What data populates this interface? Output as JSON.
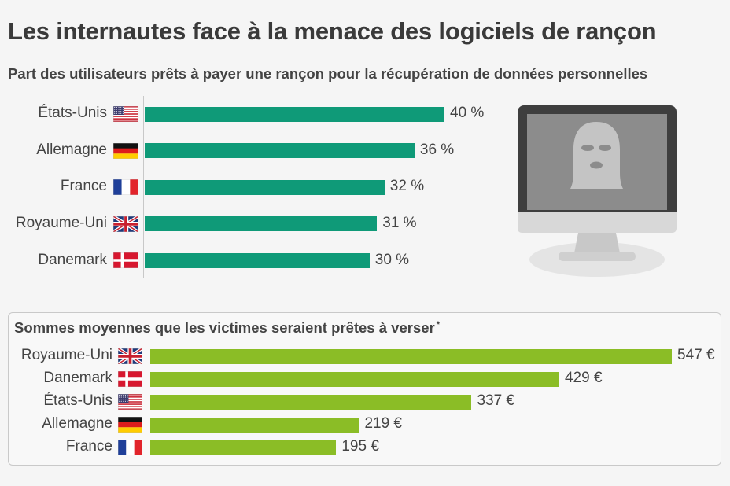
{
  "title": "Les internautes face à la menace des logiciels de rançon",
  "chart_data": [
    {
      "type": "bar",
      "orientation": "horizontal",
      "title": "Part des utilisateurs prêts à payer une rançon pour la récupération de données personnelles",
      "categories": [
        "États-Unis",
        "Allemagne",
        "France",
        "Royaume-Uni",
        "Danemark"
      ],
      "flags": [
        "flag-us-icon",
        "flag-de-icon",
        "flag-fr-icon",
        "flag-uk-icon",
        "flag-dk-icon"
      ],
      "values": [
        40,
        36,
        32,
        31,
        30
      ],
      "value_labels": [
        "40 %",
        "36 %",
        "32 %",
        "31 %",
        "30 %"
      ],
      "unit": "%",
      "color": "#0f9a78"
    },
    {
      "type": "bar",
      "orientation": "horizontal",
      "title": "Sommes moyennes que les victimes seraient prêtes à verser",
      "title_note": "*",
      "categories": [
        "Royaume-Uni",
        "Danemark",
        "États-Unis",
        "Allemagne",
        "France"
      ],
      "flags": [
        "flag-uk-icon",
        "flag-dk-icon",
        "flag-us-icon",
        "flag-de-icon",
        "flag-fr-icon"
      ],
      "values": [
        547,
        429,
        337,
        219,
        195
      ],
      "value_labels": [
        "547 €",
        "429 €",
        "337 €",
        "219 €",
        "195 €"
      ],
      "unit": "€",
      "color": "#8bbd26"
    }
  ],
  "illustration": {
    "icon": "monitor-hacker-icon"
  }
}
